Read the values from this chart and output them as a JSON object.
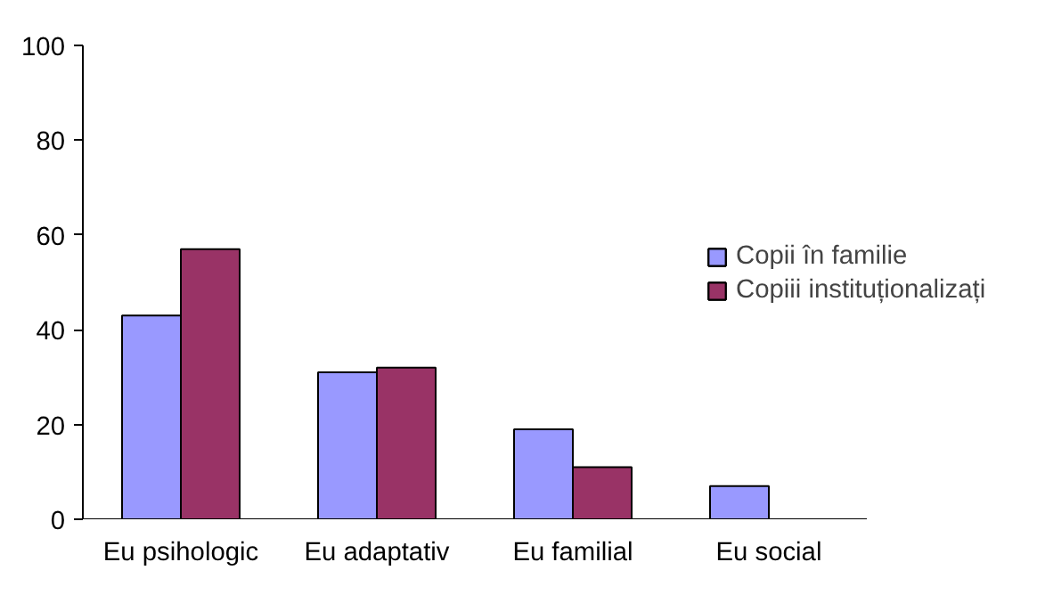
{
  "chart_data": {
    "type": "bar",
    "categories": [
      "Eu psihologic",
      "Eu adaptativ",
      "Eu familial",
      "Eu social"
    ],
    "series": [
      {
        "name": "Copii în familie",
        "color": "#9999ff",
        "values": [
          43,
          31,
          19,
          7
        ]
      },
      {
        "name": "Copiii instituționalizați",
        "color": "#993366",
        "values": [
          57,
          32,
          11,
          null
        ]
      }
    ],
    "ylim": [
      0,
      100
    ],
    "yticks": [
      0,
      20,
      40,
      60,
      80,
      100
    ],
    "grid": false,
    "legend": "right"
  }
}
